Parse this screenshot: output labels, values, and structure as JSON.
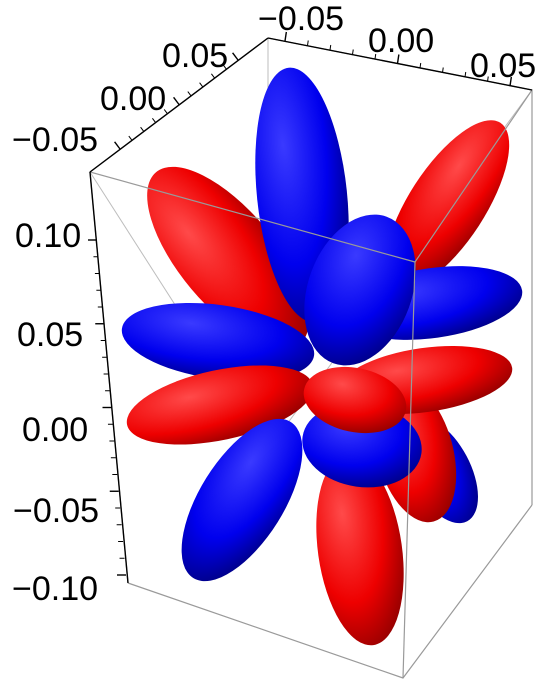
{
  "chart_data": {
    "type": "3d-surface",
    "axes": {
      "x": {
        "ticks": [
          "−0.05",
          "0.00",
          "0.05"
        ]
      },
      "y": {
        "ticks": [
          "0.05",
          "0.00",
          "−0.05"
        ]
      },
      "z": {
        "ticks": [
          "0.10",
          "0.05",
          "0.00",
          "−0.05",
          "−0.10"
        ]
      }
    },
    "series": [
      {
        "sign": "positive",
        "color": "#ff0000"
      },
      {
        "sign": "negative",
        "color": "#0000ff"
      }
    ],
    "box": true
  }
}
